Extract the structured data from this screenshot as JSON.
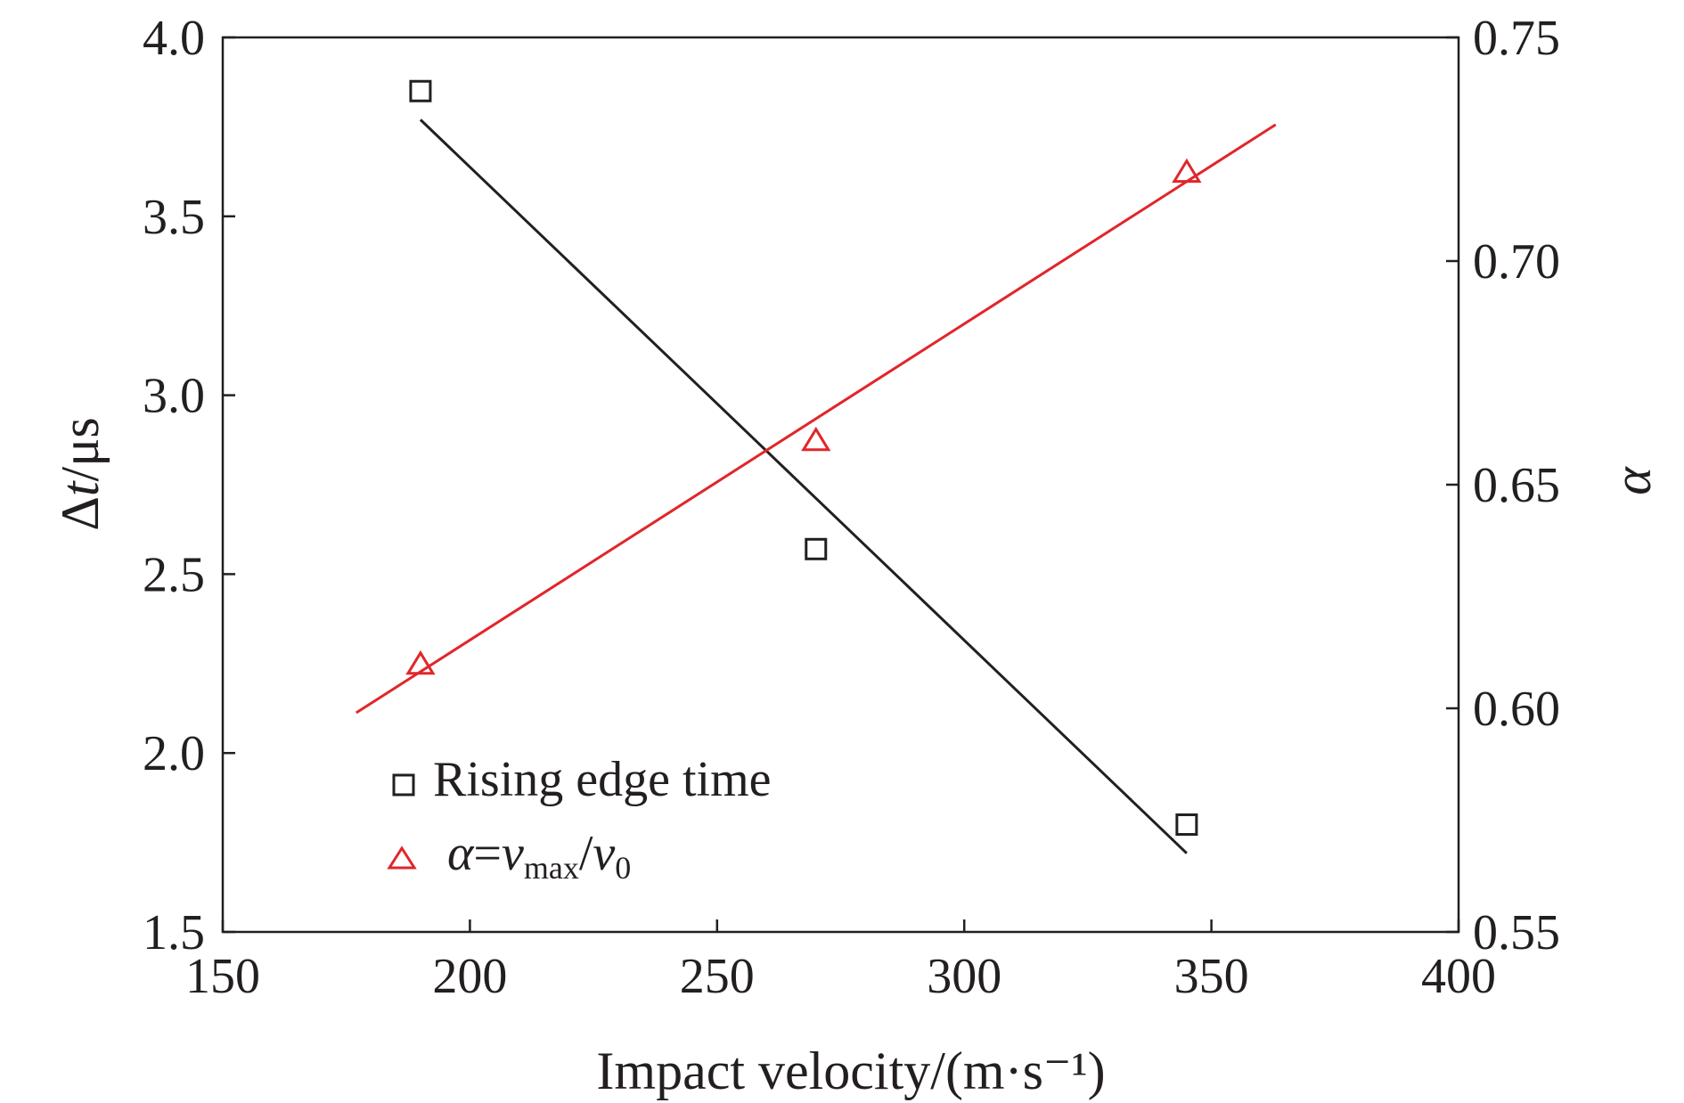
{
  "chart_data": {
    "type": "scatter",
    "title": "",
    "xlabel": "Impact velocity/(m·s⁻¹)",
    "ylabel_left": {
      "symbol": "Δ",
      "var": "t",
      "unit": "/μs"
    },
    "ylabel_right": "α",
    "xlim": [
      150,
      400
    ],
    "ylim_left": [
      1.5,
      4.0
    ],
    "ylim_right": [
      0.55,
      0.75
    ],
    "x_ticks": [
      "150",
      "200",
      "250",
      "300",
      "350",
      "400"
    ],
    "y_left_ticks": [
      "1.5",
      "2.0",
      "2.5",
      "3.0",
      "3.5",
      "4.0"
    ],
    "y_right_ticks": [
      "0.55",
      "0.60",
      "0.65",
      "0.70",
      "0.75"
    ],
    "grid": false,
    "legend_position": "bottom-left",
    "series": [
      {
        "name": "Rising edge time",
        "axis": "left",
        "marker": "square",
        "color": "#231f20",
        "x": [
          190,
          270,
          345
        ],
        "y": [
          3.85,
          2.57,
          1.8
        ],
        "fit_line": {
          "x": [
            190,
            345
          ],
          "y": [
            3.77,
            1.72
          ]
        }
      },
      {
        "name": "α=vmax/v0",
        "name_parts": {
          "alpha": "α",
          "eq": "=",
          "v": "v",
          "sub_max": "max",
          "slash": "/",
          "v0": "v",
          "sub_0": "0"
        },
        "axis": "right",
        "marker": "triangle",
        "color": "#e0262b",
        "x": [
          190,
          270,
          345
        ],
        "y": [
          0.61,
          0.66,
          0.72
        ],
        "fit_line": {
          "x": [
            177,
            363
          ],
          "y": [
            0.599,
            0.7305
          ]
        }
      }
    ]
  }
}
